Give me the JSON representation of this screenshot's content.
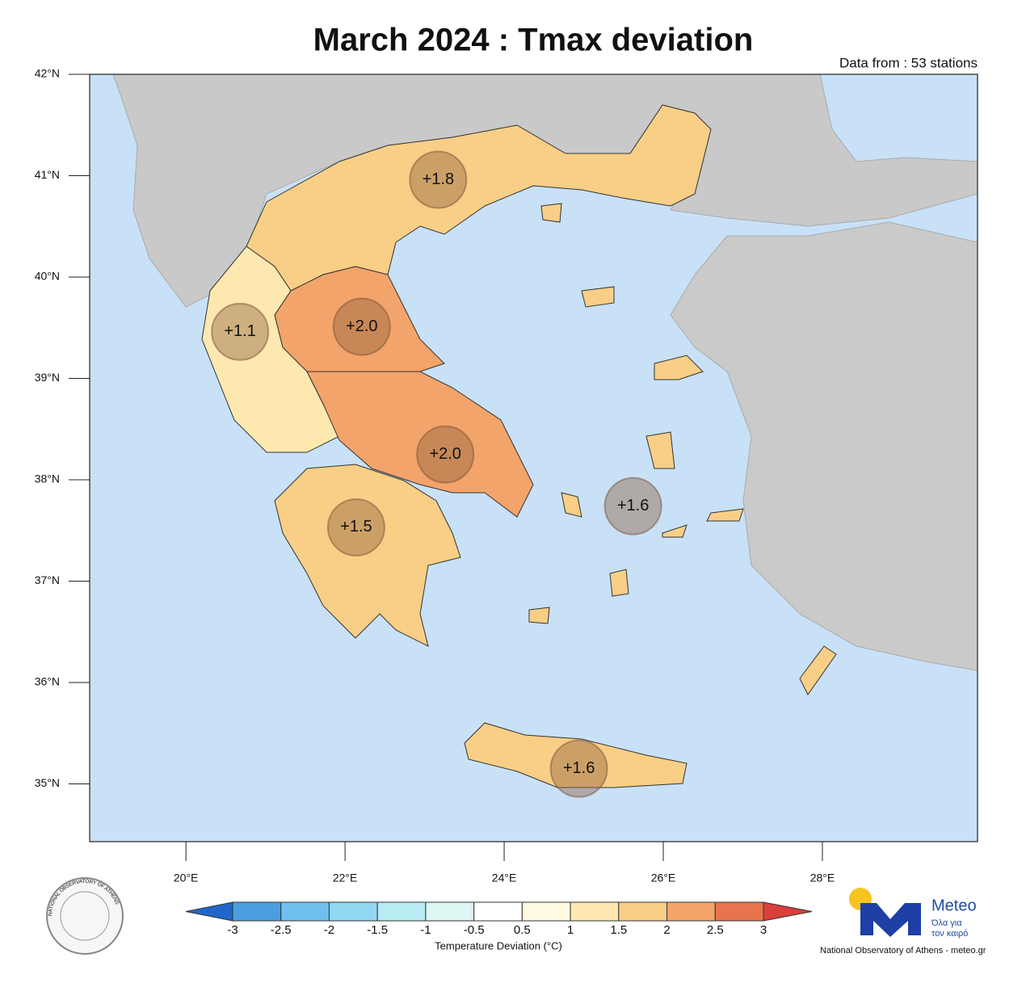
{
  "title": "March 2024 : Tmax deviation",
  "subtitle": "Data from : 53 stations",
  "map": {
    "lonlim": [
      18.79,
      29.95
    ],
    "latlim": [
      34.43,
      42
    ],
    "lat_ticks": [
      {
        "value": 42,
        "label": "42°N"
      },
      {
        "value": 41,
        "label": "41°N"
      },
      {
        "value": 40,
        "label": "40°N"
      },
      {
        "value": 39,
        "label": "39°N"
      },
      {
        "value": 38,
        "label": "38°N"
      },
      {
        "value": 37,
        "label": "37°N"
      },
      {
        "value": 36,
        "label": "36°N"
      },
      {
        "value": 35,
        "label": "35°N"
      }
    ],
    "lon_ticks": [
      {
        "value": 20,
        "label": "20°E"
      },
      {
        "value": 22,
        "label": "22°E"
      },
      {
        "value": 24,
        "label": "24°E"
      },
      {
        "value": 26,
        "label": "26°E"
      },
      {
        "value": 28,
        "label": "28°E"
      }
    ]
  },
  "stations": [
    {
      "lon": 23.17,
      "lat": 40.96,
      "value": 1.8,
      "value_label": "+1.8"
    },
    {
      "lon": 20.68,
      "lat": 39.46,
      "value": 1.1,
      "value_label": "+1.1"
    },
    {
      "lon": 22.21,
      "lat": 39.51,
      "value": 2.0,
      "value_label": "+2.0"
    },
    {
      "lon": 23.26,
      "lat": 38.25,
      "value": 2.0,
      "value_label": "+2.0"
    },
    {
      "lon": 22.14,
      "lat": 37.53,
      "value": 1.5,
      "value_label": "+1.5"
    },
    {
      "lon": 25.62,
      "lat": 37.74,
      "value": 1.6,
      "value_label": "+1.6"
    },
    {
      "lon": 24.94,
      "lat": 35.15,
      "value": 1.6,
      "value_label": "+1.6"
    }
  ],
  "colorbar": {
    "label": "Temperature Deviation (°C)",
    "ticks": [
      -3,
      -2.5,
      -2,
      -1.5,
      -1,
      -0.5,
      0.5,
      1,
      1.5,
      2,
      2.5,
      3
    ],
    "colors": [
      "#2166cc",
      "#4a9fe0",
      "#6ec0ee",
      "#92d8f2",
      "#b8ecf2",
      "#ddf7f5",
      "#ffffff",
      "#fffbe0",
      "#fde9b0",
      "#f9cf87",
      "#f3a46a",
      "#e8744e",
      "#d8403a"
    ]
  },
  "logo": {
    "name": "Meteo",
    "slogan_1": "Όλα για",
    "slogan_2": "τον καιρό"
  },
  "footer": "National Observatory of Athens - meteo.gr",
  "seal": "NATIONAL OBSERVATORY OF ATHENS"
}
